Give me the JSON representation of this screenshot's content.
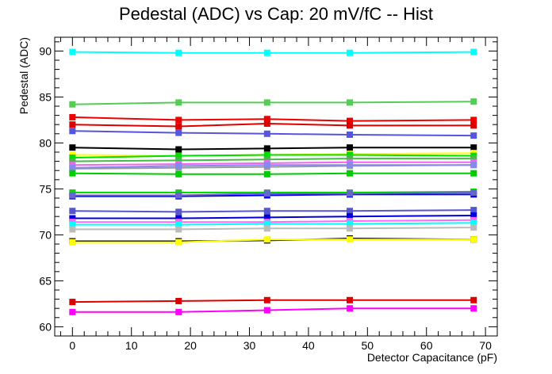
{
  "chart_data": {
    "type": "line",
    "title": "Pedestal (ADC) vs Cap: 20 mV/fC -- Hist",
    "xlabel": "Detector Capacitance (pF)",
    "ylabel": "Pedestal (ADC)",
    "xlim": [
      -3,
      72
    ],
    "ylim": [
      59,
      91.5
    ],
    "xticks": [
      0,
      10,
      20,
      30,
      40,
      50,
      60,
      70
    ],
    "yticks": [
      60,
      65,
      70,
      75,
      80,
      85,
      90
    ],
    "grid": false,
    "legend": "none",
    "x": [
      0,
      18,
      33,
      47,
      68
    ],
    "series": [
      {
        "color": "#00ffff",
        "values": [
          89.9,
          89.8,
          89.8,
          89.8,
          89.9
        ]
      },
      {
        "color": "#55cc55",
        "values": [
          84.2,
          84.4,
          84.4,
          84.4,
          84.5
        ]
      },
      {
        "color": "#ee0000",
        "values": [
          82.8,
          82.5,
          82.6,
          82.4,
          82.5
        ]
      },
      {
        "color": "#dd0000",
        "values": [
          82.0,
          81.8,
          82.1,
          81.9,
          81.9
        ]
      },
      {
        "color": "#5555dd",
        "values": [
          81.3,
          81.1,
          81.0,
          80.9,
          80.8
        ]
      },
      {
        "color": "#000000",
        "values": [
          79.5,
          79.3,
          79.4,
          79.5,
          79.5
        ]
      },
      {
        "color": "#ffff00",
        "values": [
          78.7,
          78.6,
          78.7,
          78.8,
          78.9
        ]
      },
      {
        "color": "#00dd00",
        "values": [
          78.4,
          78.6,
          78.7,
          78.7,
          78.6
        ]
      },
      {
        "color": "#44bb44",
        "values": [
          78.0,
          78.1,
          78.2,
          78.3,
          78.3
        ]
      },
      {
        "color": "#ee66ee",
        "values": [
          77.6,
          77.7,
          77.8,
          77.9,
          77.9
        ]
      },
      {
        "color": "#999999",
        "values": [
          77.2,
          77.3,
          77.4,
          77.5,
          77.6
        ]
      },
      {
        "color": "#8888ee",
        "values": [
          77.3,
          77.5,
          77.6,
          77.6,
          77.6
        ]
      },
      {
        "color": "#00cc00",
        "values": [
          76.7,
          76.6,
          76.6,
          76.7,
          76.7
        ]
      },
      {
        "color": "#00dd00",
        "values": [
          74.6,
          74.6,
          74.6,
          74.6,
          74.7
        ]
      },
      {
        "color": "#0000ee",
        "values": [
          74.2,
          74.2,
          74.3,
          74.4,
          74.4
        ]
      },
      {
        "color": "#6666cc",
        "values": [
          74.3,
          74.3,
          74.5,
          74.5,
          74.6
        ]
      },
      {
        "color": "#5555cc",
        "values": [
          72.6,
          72.5,
          72.6,
          72.6,
          72.7
        ]
      },
      {
        "color": "#0000dd",
        "values": [
          71.8,
          71.8,
          71.9,
          72.0,
          72.1
        ]
      },
      {
        "color": "#ff66ff",
        "values": [
          71.4,
          71.4,
          71.4,
          71.5,
          71.6
        ]
      },
      {
        "color": "#00ffff",
        "values": [
          71.1,
          71.1,
          71.2,
          71.2,
          71.3
        ]
      },
      {
        "color": "#bbbbbb",
        "values": [
          70.6,
          70.6,
          70.7,
          70.7,
          70.8
        ]
      },
      {
        "color": "#000000",
        "values": [
          69.3,
          69.3,
          69.4,
          69.6,
          69.5
        ]
      },
      {
        "color": "#ffff00",
        "values": [
          69.2,
          69.2,
          69.5,
          69.5,
          69.5
        ]
      },
      {
        "color": "#dd0000",
        "values": [
          62.7,
          62.8,
          62.9,
          62.9,
          62.9
        ]
      },
      {
        "color": "#ff00ff",
        "values": [
          61.6,
          61.6,
          61.8,
          62.0,
          62.0
        ]
      }
    ]
  }
}
